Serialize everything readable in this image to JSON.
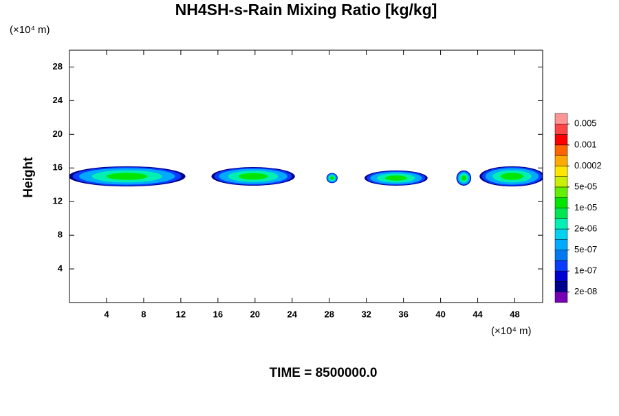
{
  "chart_data": {
    "type": "contour",
    "title": "NH4SH-s-Rain Mixing Ratio [kg/kg]",
    "y_unit": "(×10⁴ m)",
    "x_unit": "(×10⁴ m)",
    "ylabel": "Height",
    "footer": "TIME = 8500000.0",
    "xlim": [
      0,
      51
    ],
    "xticks": [
      4,
      8,
      12,
      16,
      20,
      24,
      28,
      32,
      36,
      40,
      44,
      48
    ],
    "ylim": [
      0,
      30
    ],
    "yticks": [
      4,
      8,
      12,
      16,
      20,
      24,
      28
    ],
    "colorbar_colors": [
      "#7800b4",
      "#00008c",
      "#0000d2",
      "#0a3cff",
      "#0078f0",
      "#00aaff",
      "#00d2f0",
      "#00f0b4",
      "#00e650",
      "#00e600",
      "#64f000",
      "#c8f000",
      "#ffe600",
      "#ffaa00",
      "#ff6400",
      "#ff0000",
      "#ff4646",
      "#ff9696"
    ],
    "colorbar_levels": [
      {
        "value": 2e-08,
        "label": "2e-08"
      },
      {
        "value": 1e-07,
        "label": "1e-07"
      },
      {
        "value": 5e-07,
        "label": "5e-07"
      },
      {
        "value": 2e-06,
        "label": "2e-06"
      },
      {
        "value": 1e-05,
        "label": "1e-05"
      },
      {
        "value": 5e-05,
        "label": "5e-05"
      },
      0.0002,
      0.001,
      0.005
    ]
  }
}
